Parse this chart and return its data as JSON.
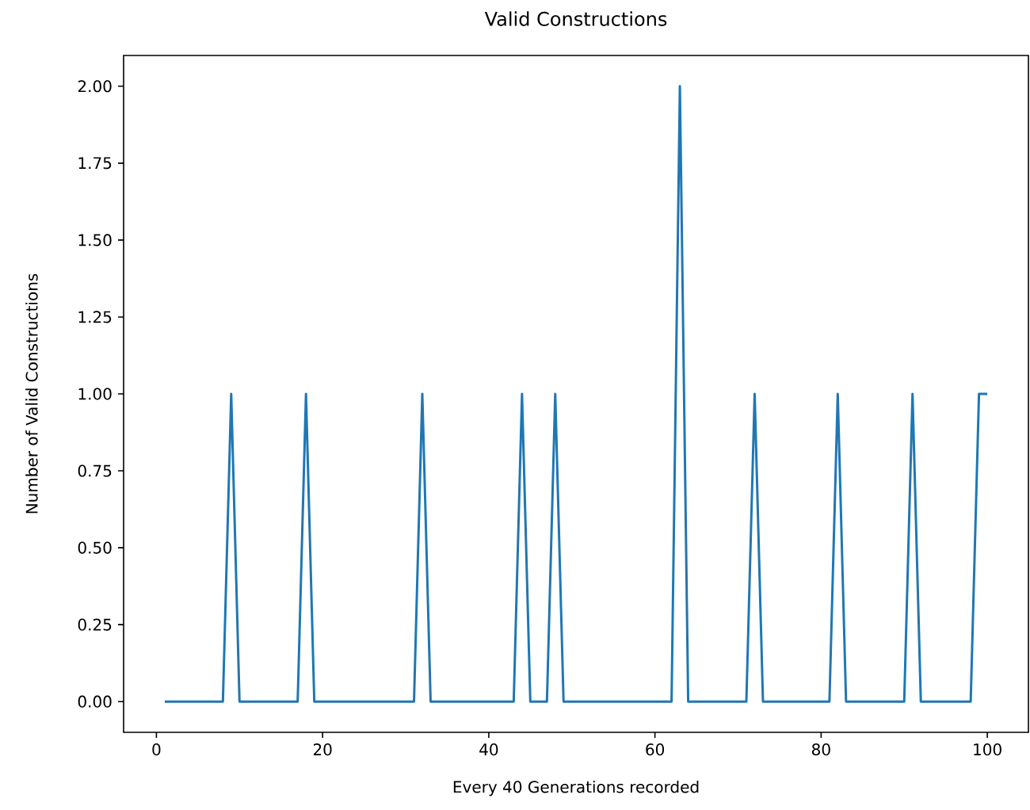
{
  "chart_data": {
    "type": "line",
    "title": "Valid Constructions",
    "xlabel": "Every 40 Generations recorded",
    "ylabel": "Number of Valid Constructions",
    "x": [
      1,
      2,
      3,
      4,
      5,
      6,
      7,
      8,
      9,
      10,
      11,
      12,
      13,
      14,
      15,
      16,
      17,
      18,
      19,
      20,
      21,
      22,
      23,
      24,
      25,
      26,
      27,
      28,
      29,
      30,
      31,
      32,
      33,
      34,
      35,
      36,
      37,
      38,
      39,
      40,
      41,
      42,
      43,
      44,
      45,
      46,
      47,
      48,
      49,
      50,
      51,
      52,
      53,
      54,
      55,
      56,
      57,
      58,
      59,
      60,
      61,
      62,
      63,
      64,
      65,
      66,
      67,
      68,
      69,
      70,
      71,
      72,
      73,
      74,
      75,
      76,
      77,
      78,
      79,
      80,
      81,
      82,
      83,
      84,
      85,
      86,
      87,
      88,
      89,
      90,
      91,
      92,
      93,
      94,
      95,
      96,
      97,
      98,
      99,
      100
    ],
    "series": [
      {
        "color": "#1f77b4",
        "values": [
          0,
          0,
          0,
          0,
          0,
          0,
          0,
          0,
          1,
          0,
          0,
          0,
          0,
          0,
          0,
          0,
          0,
          1,
          0,
          0,
          0,
          0,
          0,
          0,
          0,
          0,
          0,
          0,
          0,
          0,
          0,
          1,
          0,
          0,
          0,
          0,
          0,
          0,
          0,
          0,
          0,
          0,
          0,
          1,
          0,
          0,
          0,
          1,
          0,
          0,
          0,
          0,
          0,
          0,
          0,
          0,
          0,
          0,
          0,
          0,
          0,
          0,
          2,
          0,
          0,
          0,
          0,
          0,
          0,
          0,
          0,
          1,
          0,
          0,
          0,
          0,
          0,
          0,
          0,
          0,
          0,
          1,
          0,
          0,
          0,
          0,
          0,
          0,
          0,
          0,
          1,
          0,
          0,
          0,
          0,
          0,
          0,
          0,
          1,
          1
        ]
      }
    ],
    "xlim": [
      -3.95,
      104.95
    ],
    "ylim": [
      -0.1,
      2.1
    ],
    "xticks": [
      0,
      20,
      40,
      60,
      80,
      100
    ],
    "yticks": [
      {
        "value": 0,
        "label": "0.00"
      },
      {
        "value": 0.25,
        "label": "0.25"
      },
      {
        "value": 0.5,
        "label": "0.50"
      },
      {
        "value": 0.75,
        "label": "0.75"
      },
      {
        "value": 1,
        "label": "1.00"
      },
      {
        "value": 1.25,
        "label": "1.25"
      },
      {
        "value": 1.5,
        "label": "1.50"
      },
      {
        "value": 1.75,
        "label": "1.75"
      },
      {
        "value": 2,
        "label": "2.00"
      }
    ],
    "line_style": "solid",
    "marker": "none"
  }
}
